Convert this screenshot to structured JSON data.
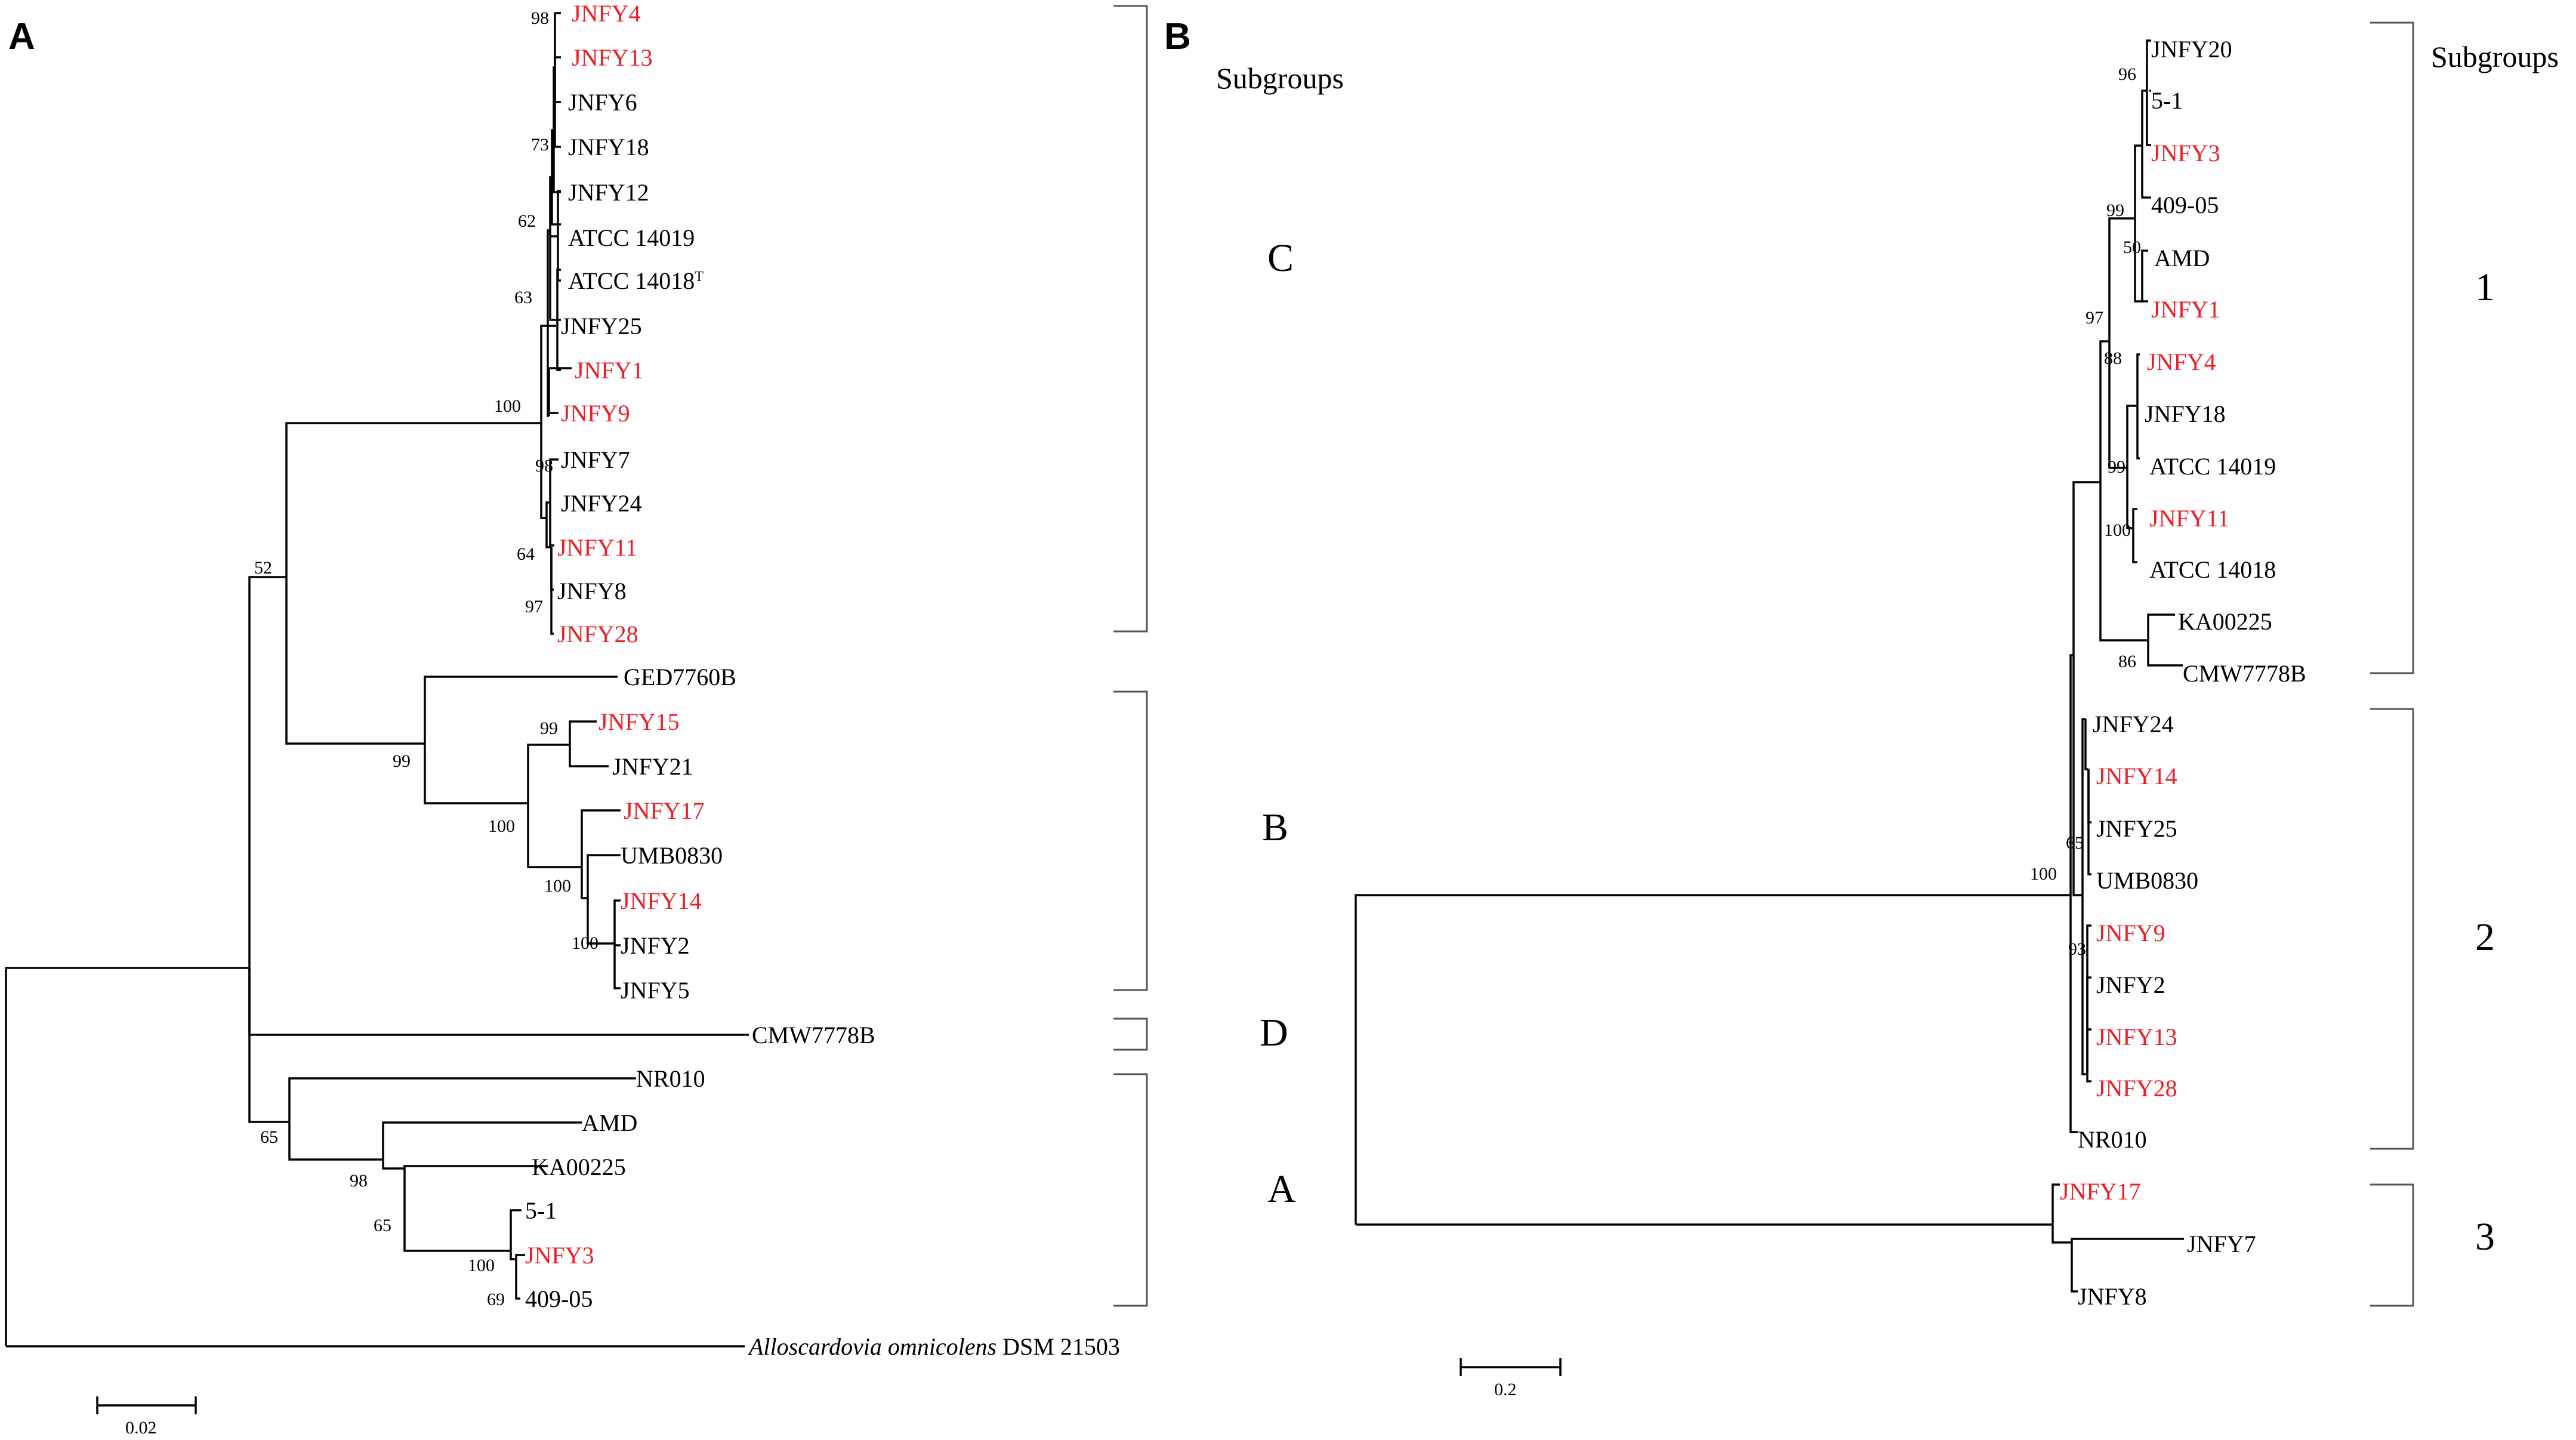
{
  "colors": {
    "highlight": "#ee1c25",
    "normal": "#000000"
  },
  "panelA": {
    "letter": "A",
    "subgroups_header": "Subgroups",
    "leaves": [
      {
        "label": "JNFY4",
        "red": true
      },
      {
        "label": "JNFY13",
        "red": true
      },
      {
        "label": "JNFY6",
        "red": false
      },
      {
        "label": "JNFY18",
        "red": false
      },
      {
        "label": "JNFY12",
        "red": false
      },
      {
        "label": "ATCC 14019",
        "red": false
      },
      {
        "label": "ATCC 14018",
        "sup": "T",
        "red": false
      },
      {
        "label": "JNFY25",
        "red": false
      },
      {
        "label": "JNFY1",
        "red": true
      },
      {
        "label": "JNFY9",
        "red": true
      },
      {
        "label": "JNFY7",
        "red": false
      },
      {
        "label": "JNFY24",
        "red": false
      },
      {
        "label": "JNFY11",
        "red": true
      },
      {
        "label": "JNFY8",
        "red": false
      },
      {
        "label": "JNFY28",
        "red": true
      },
      {
        "label": "GED7760B",
        "red": false
      },
      {
        "label": "JNFY15",
        "red": true
      },
      {
        "label": "JNFY21",
        "red": false
      },
      {
        "label": "JNFY17",
        "red": true
      },
      {
        "label": "UMB0830",
        "red": false
      },
      {
        "label": "JNFY14",
        "red": true
      },
      {
        "label": "JNFY2",
        "red": false
      },
      {
        "label": "JNFY5",
        "red": false
      },
      {
        "label": "CMW7778B",
        "red": false
      },
      {
        "label": "NR010",
        "red": false
      },
      {
        "label": "AMD",
        "red": false
      },
      {
        "label": "KA00225",
        "red": false
      },
      {
        "label": "5-1",
        "red": false
      },
      {
        "label": "JNFY3",
        "red": true
      },
      {
        "label": "409-05",
        "red": false
      },
      {
        "label": "DSM 21503",
        "italic_prefix": "Alloscardovia omnicolens",
        "red": false
      }
    ],
    "bootstrap": [
      "98",
      "73",
      "62",
      "63",
      "100",
      "98",
      "64",
      "97",
      "52",
      "99",
      "99",
      "100",
      "100",
      "100",
      "65",
      "98",
      "65",
      "100",
      "69"
    ],
    "groups": [
      "C",
      "B",
      "D",
      "A"
    ],
    "scale_label": "0.02"
  },
  "panelB": {
    "letter": "B",
    "subgroups_header": "Subgroups",
    "leaves": [
      {
        "label": "JNFY20",
        "red": false
      },
      {
        "label": "5-1",
        "red": false
      },
      {
        "label": "JNFY3",
        "red": true
      },
      {
        "label": "409-05",
        "red": false
      },
      {
        "label": "AMD",
        "red": false
      },
      {
        "label": "JNFY1",
        "red": true
      },
      {
        "label": "JNFY4",
        "red": true
      },
      {
        "label": "JNFY18",
        "red": false
      },
      {
        "label": "ATCC 14019",
        "red": false
      },
      {
        "label": "JNFY11",
        "red": true
      },
      {
        "label": "ATCC 14018",
        "red": false
      },
      {
        "label": "KA00225",
        "red": false
      },
      {
        "label": "CMW7778B",
        "red": false
      },
      {
        "label": "JNFY24",
        "red": false
      },
      {
        "label": "JNFY14",
        "red": true
      },
      {
        "label": "JNFY25",
        "red": false
      },
      {
        "label": "UMB0830",
        "red": false
      },
      {
        "label": "JNFY9",
        "red": true
      },
      {
        "label": "JNFY2",
        "red": false
      },
      {
        "label": "JNFY13",
        "red": true
      },
      {
        "label": "JNFY28",
        "red": true
      },
      {
        "label": "NR010",
        "red": false
      },
      {
        "label": "JNFY17",
        "red": true
      },
      {
        "label": "JNFY7",
        "red": false
      },
      {
        "label": "JNFY8",
        "red": false
      }
    ],
    "bootstrap": [
      "96",
      "99",
      "50",
      "97",
      "88",
      "99",
      "100",
      "86",
      "65",
      "100",
      "93"
    ],
    "groups": [
      "1",
      "2",
      "3"
    ],
    "scale_label": "0.2"
  }
}
